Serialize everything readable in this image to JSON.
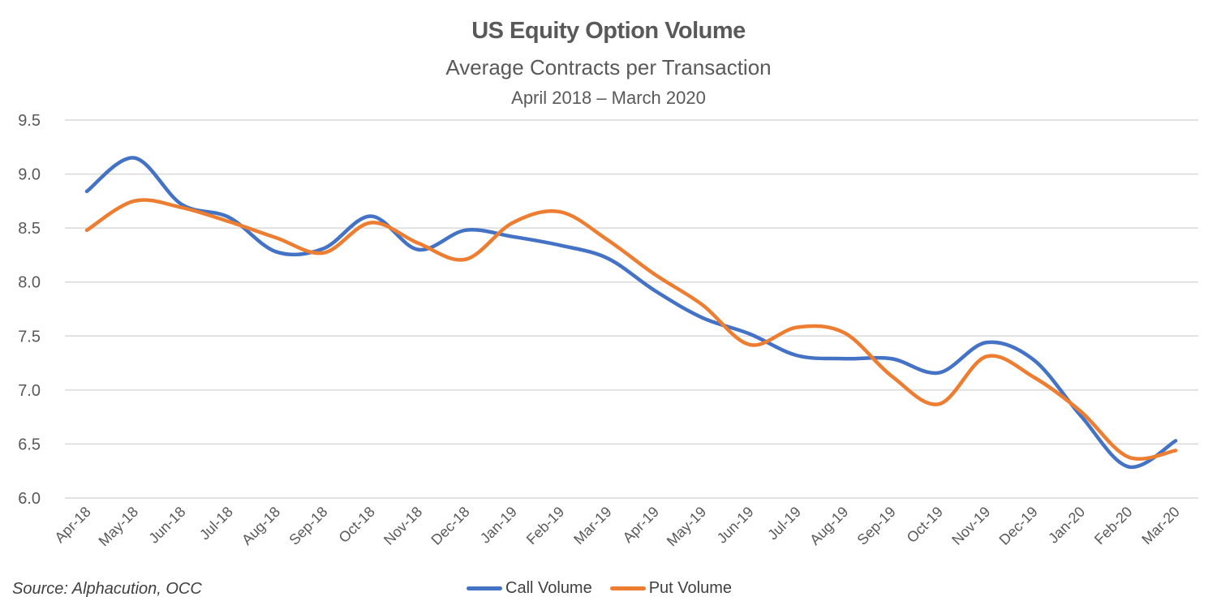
{
  "chart_data": {
    "type": "line",
    "title": "US Equity Option Volume",
    "subtitle": "Average Contracts per Transaction",
    "date_range": "April 2018 – March 2020",
    "xlabel": "",
    "ylabel": "",
    "ylim": [
      6.0,
      9.5
    ],
    "yticks": [
      "6.0",
      "6.5",
      "7.0",
      "7.5",
      "8.0",
      "8.5",
      "9.0",
      "9.5"
    ],
    "ytick_values": [
      6.0,
      6.5,
      7.0,
      7.5,
      8.0,
      8.5,
      9.0,
      9.5
    ],
    "grid": true,
    "smooth": true,
    "legend_position": "bottom",
    "categories": [
      "Apr-18",
      "May-18",
      "Jun-18",
      "Jul-18",
      "Aug-18",
      "Sep-18",
      "Oct-18",
      "Nov-18",
      "Dec-18",
      "Jan-19",
      "Feb-19",
      "Mar-19",
      "Apr-19",
      "May-19",
      "Jun-19",
      "Jul-19",
      "Aug-19",
      "Sep-19",
      "Oct-19",
      "Nov-19",
      "Dec-19",
      "Jan-20",
      "Feb-20",
      "Mar-20"
    ],
    "series": [
      {
        "name": "Call Volume",
        "color": "#4472C4",
        "values": [
          8.84,
          9.15,
          8.72,
          8.6,
          8.28,
          8.31,
          8.61,
          8.3,
          8.48,
          8.42,
          8.34,
          8.22,
          7.92,
          7.67,
          7.52,
          7.32,
          7.29,
          7.29,
          7.16,
          7.44,
          7.28,
          6.76,
          6.29,
          6.53
        ]
      },
      {
        "name": "Put Volume",
        "color": "#ED7D31",
        "values": [
          8.48,
          8.75,
          8.69,
          8.56,
          8.41,
          8.27,
          8.55,
          8.36,
          8.21,
          8.55,
          8.65,
          8.39,
          8.07,
          7.79,
          7.42,
          7.58,
          7.53,
          7.13,
          6.87,
          7.31,
          7.12,
          6.8,
          6.38,
          6.44
        ]
      }
    ],
    "source_note": "Source: Alphacution, OCC"
  },
  "colors": {
    "text": "#595959",
    "grid": "#D9D9D9"
  }
}
